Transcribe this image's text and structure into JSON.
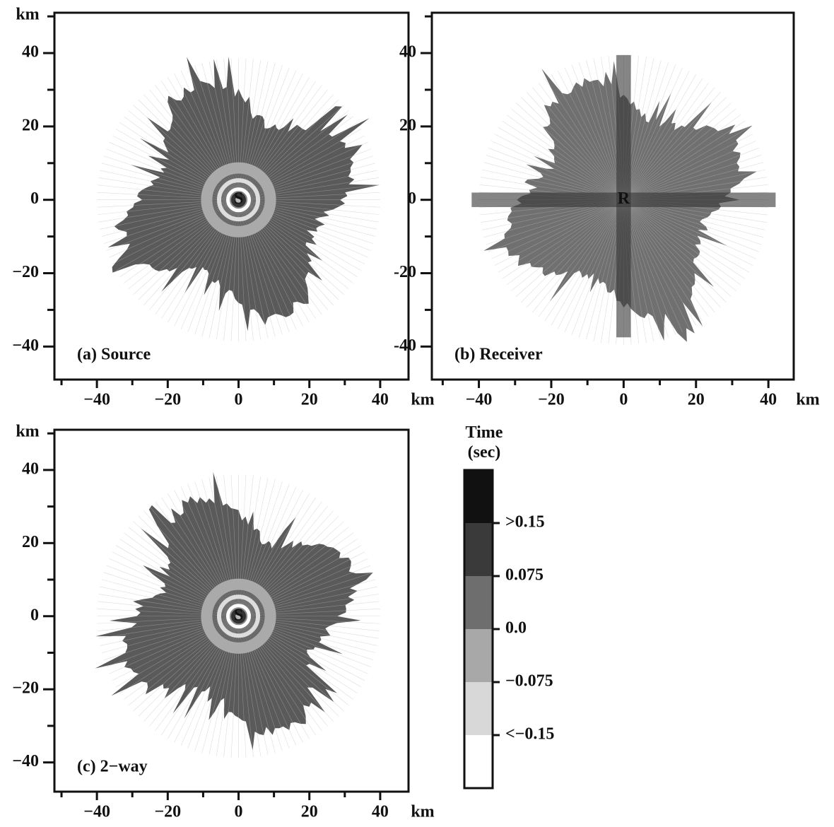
{
  "chart_data": [
    {
      "type": "map",
      "panel_label": "(a) Source",
      "center_label": "S",
      "x_unit": "km",
      "y_unit": "km",
      "xlim": [
        -52,
        48
      ],
      "ylim": [
        -49,
        51
      ],
      "xticks": [
        {
          "value": -40,
          "label": "−40"
        },
        {
          "value": -20,
          "label": "−20"
        },
        0,
        20,
        40
      ],
      "yticks": [
        {
          "value": -40,
          "label": "−40"
        },
        {
          "value": -20,
          "label": "−20"
        },
        0,
        20,
        40
      ],
      "minor_xticks": [
        -50,
        -30,
        -10,
        10,
        30
      ],
      "minor_yticks": [
        -30,
        -10,
        10,
        30,
        50
      ]
    },
    {
      "type": "map",
      "panel_label": "(b) Receiver",
      "center_label": "R",
      "x_unit": "km",
      "xlim": [
        -53,
        47
      ],
      "ylim": [
        -49,
        51
      ],
      "xticks": [
        {
          "value": -40,
          "label": "−40"
        },
        {
          "value": -20,
          "label": "−20"
        },
        0,
        20,
        40
      ],
      "yticks": [
        -40,
        -20,
        0,
        20,
        40
      ],
      "minor_xticks": [
        -50,
        -30,
        -10,
        10,
        30
      ],
      "minor_yticks": [
        -30,
        -10,
        10,
        30,
        50
      ]
    },
    {
      "type": "map",
      "panel_label": "(c) 2−way",
      "center_label": "S",
      "x_unit": "km",
      "y_unit": "km",
      "xlim": [
        -52,
        48
      ],
      "ylim": [
        -48,
        51
      ],
      "xticks": [
        {
          "value": -40,
          "label": "−40"
        },
        {
          "value": -20,
          "label": "−20"
        },
        0,
        20,
        40
      ],
      "yticks": [
        {
          "value": -40,
          "label": "−40"
        },
        {
          "value": -20,
          "label": "−20"
        },
        0,
        20,
        40
      ],
      "minor_xticks": [
        -50,
        -30,
        -10,
        10,
        30
      ],
      "minor_yticks": [
        -30,
        -10,
        10,
        30,
        50
      ]
    },
    {
      "type": "colorbar",
      "title": "Time\n(sec)",
      "colors": [
        "#111111",
        "#3a3a3a",
        "#6e6e6e",
        "#a8a8a8",
        "#d8d8d8",
        "#ffffff"
      ],
      "labels": [
        ">0.15",
        "0.075",
        "0.0",
        "−0.075",
        "<−0.15"
      ]
    }
  ]
}
